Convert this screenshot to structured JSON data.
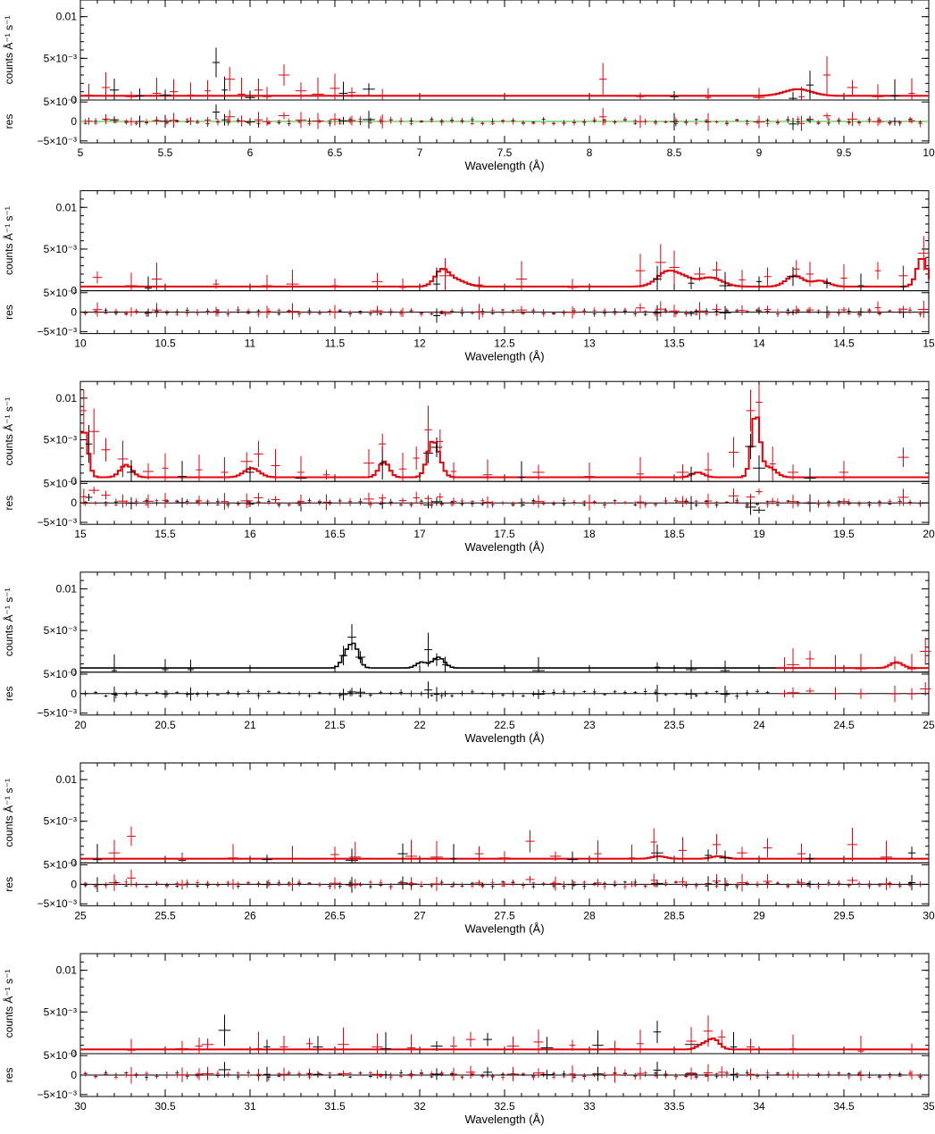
{
  "chart_data": {
    "type": "line",
    "colors": {
      "black": "#000000",
      "red": "#e8000b",
      "green": "#20c020"
    },
    "series_colors": [
      "black",
      "red"
    ],
    "top_y_axis": {
      "label": "counts Å⁻¹ s⁻¹",
      "ylim": [
        0,
        0.012
      ],
      "ticks": [
        "0",
        "5×10⁻³",
        "0.01"
      ]
    },
    "res_y_axis": {
      "label": "res",
      "ylim": [
        -0.0055,
        0.0055
      ],
      "ticks": [
        "−5×10⁻³",
        "0",
        "5×10⁻³"
      ]
    },
    "xlabel": "Wavelength (Å)",
    "panels": [
      {
        "xlim": [
          5,
          10
        ],
        "xticks": [
          "5",
          "5.5",
          "6",
          "6.5",
          "7",
          "7.5",
          "8",
          "8.5",
          "9",
          "9.5",
          "10"
        ],
        "residual_zero_color": "green",
        "lines": [
          [
            9.22,
            0.0008,
            0.08
          ]
        ],
        "black_pts": [
          [
            5.2,
            0.0012
          ],
          [
            5.35,
            0.0005
          ],
          [
            5.5,
            0.0006
          ],
          [
            5.8,
            0.0045
          ],
          [
            5.85,
            0.0012
          ],
          [
            6.0,
            0.0003
          ],
          [
            6.55,
            0.0008
          ],
          [
            6.7,
            0.0013
          ],
          [
            8.5,
            0.0004
          ],
          [
            9.2,
            0.0002
          ],
          [
            9.3,
            0.0018
          ],
          [
            9.8,
            0.0005
          ]
        ],
        "red_pts": [
          [
            5.05,
            0.0006
          ],
          [
            5.15,
            0.0015
          ],
          [
            5.3,
            0.0004
          ],
          [
            5.45,
            0.0008
          ],
          [
            5.55,
            0.001
          ],
          [
            5.65,
            0.0006
          ],
          [
            5.75,
            0.0011
          ],
          [
            5.88,
            0.0025
          ],
          [
            5.95,
            0.0007
          ],
          [
            6.05,
            0.0012
          ],
          [
            6.1,
            0.0004
          ],
          [
            6.2,
            0.003
          ],
          [
            6.3,
            0.0011
          ],
          [
            6.4,
            0.0007
          ],
          [
            6.5,
            0.0014
          ],
          [
            6.6,
            0.0009
          ],
          [
            6.78,
            0.0005
          ],
          [
            8.08,
            0.0025
          ],
          [
            8.3,
            0.0004
          ],
          [
            8.7,
            0.0003
          ],
          [
            9.0,
            0.0003
          ],
          [
            9.25,
            0.0004
          ],
          [
            9.4,
            0.003
          ],
          [
            9.55,
            0.0015
          ],
          [
            9.7,
            0.0004
          ],
          [
            9.9,
            0.0008
          ]
        ]
      },
      {
        "xlim": [
          10,
          15
        ],
        "xticks": [
          "10",
          "10.5",
          "11",
          "11.5",
          "12",
          "12.5",
          "13",
          "13.5",
          "14",
          "14.5",
          "15"
        ],
        "residual_zero_color": "black",
        "lines": [
          [
            12.12,
            0.0018,
            0.04
          ],
          [
            12.2,
            0.0008,
            0.06
          ],
          [
            13.45,
            0.0018,
            0.06
          ],
          [
            13.55,
            0.0008,
            0.05
          ],
          [
            13.7,
            0.0011,
            0.07
          ],
          [
            14.2,
            0.0013,
            0.05
          ],
          [
            14.35,
            0.0007,
            0.05
          ],
          [
            14.95,
            0.0035,
            0.03
          ]
        ],
        "black_pts": [
          [
            10.4,
            0.0003
          ],
          [
            12.1,
            0.0008
          ],
          [
            13.4,
            0.0014
          ],
          [
            13.6,
            0.0009
          ],
          [
            13.8,
            0.0006
          ],
          [
            14.0,
            0.0011
          ],
          [
            14.2,
            0.0017
          ],
          [
            14.4,
            0.0009
          ],
          [
            14.6,
            0.0006
          ],
          [
            14.85,
            0.0005
          ]
        ],
        "red_pts": [
          [
            10.1,
            0.0016
          ],
          [
            10.3,
            0.0006
          ],
          [
            10.45,
            0.0014
          ],
          [
            10.8,
            0.0008
          ],
          [
            11.1,
            0.0006
          ],
          [
            11.25,
            0.0008
          ],
          [
            11.5,
            0.0006
          ],
          [
            11.75,
            0.0011
          ],
          [
            11.9,
            0.0004
          ],
          [
            12.15,
            0.0018
          ],
          [
            12.35,
            0.0007
          ],
          [
            12.6,
            0.0014
          ],
          [
            12.9,
            0.0004
          ],
          [
            13.3,
            0.0024
          ],
          [
            13.42,
            0.0034
          ],
          [
            13.5,
            0.0028
          ],
          [
            13.65,
            0.002
          ],
          [
            13.75,
            0.0025
          ],
          [
            13.9,
            0.0013
          ],
          [
            14.05,
            0.0017
          ],
          [
            14.22,
            0.0026
          ],
          [
            14.3,
            0.002
          ],
          [
            14.5,
            0.0015
          ],
          [
            14.7,
            0.0024
          ],
          [
            14.85,
            0.0018
          ],
          [
            14.97,
            0.0045
          ]
        ]
      },
      {
        "xlim": [
          15,
          20
        ],
        "xticks": [
          "15",
          "15.5",
          "16",
          "16.5",
          "17",
          "17.5",
          "18",
          "18.5",
          "19",
          "19.5",
          "20"
        ],
        "residual_zero_color": "black",
        "lines": [
          [
            15.01,
            0.0058,
            0.025
          ],
          [
            15.26,
            0.0015,
            0.035
          ],
          [
            16.0,
            0.0011,
            0.045
          ],
          [
            16.78,
            0.0019,
            0.03
          ],
          [
            17.06,
            0.0036,
            0.03
          ],
          [
            17.1,
            0.0016,
            0.03
          ],
          [
            18.63,
            0.0006,
            0.035
          ],
          [
            18.97,
            0.0075,
            0.025
          ],
          [
            19.05,
            0.0012,
            0.04
          ]
        ],
        "black_pts": [
          [
            15.05,
            0.0045
          ],
          [
            15.3,
            0.0011
          ],
          [
            15.6,
            0.0006
          ],
          [
            16.0,
            0.0011
          ],
          [
            16.3,
            0.0004
          ],
          [
            16.78,
            0.0022
          ],
          [
            17.05,
            0.0034
          ],
          [
            17.1,
            0.0041
          ],
          [
            17.6,
            0.0005
          ],
          [
            18.6,
            0.0009
          ],
          [
            18.95,
            0.0042
          ],
          [
            19.0,
            0.0016
          ],
          [
            19.3,
            0.0004
          ]
        ],
        "red_pts": [
          [
            15.02,
            0.0085
          ],
          [
            15.08,
            0.006
          ],
          [
            15.15,
            0.0038
          ],
          [
            15.25,
            0.0027
          ],
          [
            15.4,
            0.0012
          ],
          [
            15.5,
            0.0016
          ],
          [
            15.7,
            0.0014
          ],
          [
            15.85,
            0.0011
          ],
          [
            15.98,
            0.0024
          ],
          [
            16.05,
            0.0033
          ],
          [
            16.15,
            0.0019
          ],
          [
            16.3,
            0.0011
          ],
          [
            16.45,
            0.0008
          ],
          [
            16.7,
            0.0022
          ],
          [
            16.78,
            0.0045
          ],
          [
            16.9,
            0.0015
          ],
          [
            16.98,
            0.0028
          ],
          [
            17.05,
            0.0062
          ],
          [
            17.12,
            0.0048
          ],
          [
            17.2,
            0.0012
          ],
          [
            17.4,
            0.0008
          ],
          [
            17.7,
            0.0011
          ],
          [
            18.0,
            0.0006
          ],
          [
            18.3,
            0.0009
          ],
          [
            18.55,
            0.0011
          ],
          [
            18.7,
            0.0014
          ],
          [
            18.85,
            0.0035
          ],
          [
            18.95,
            0.0085
          ],
          [
            19.0,
            0.0095
          ],
          [
            19.08,
            0.0021
          ],
          [
            19.2,
            0.0011
          ],
          [
            19.5,
            0.0011
          ],
          [
            19.85,
            0.0029
          ]
        ]
      },
      {
        "xlim": [
          20,
          25
        ],
        "xticks": [
          "20",
          "20.5",
          "21",
          "21.5",
          "22",
          "22.5",
          "23",
          "23.5",
          "24",
          "24.5",
          "25"
        ],
        "residual_zero_color": "black",
        "lines": [
          [
            21.6,
            0.0028,
            0.03
          ],
          [
            21.55,
            0.0012,
            0.025
          ],
          [
            22.1,
            0.0013,
            0.035
          ],
          [
            22.0,
            0.0007,
            0.03
          ]
        ],
        "red_from": 24.1,
        "red_lines": [
          [
            24.8,
            0.0007,
            0.035
          ]
        ],
        "black_pts": [
          [
            20.2,
            0.0002
          ],
          [
            20.5,
            0.0003
          ],
          [
            20.65,
            0.0003
          ],
          [
            21.55,
            0.002
          ],
          [
            21.6,
            0.0042
          ],
          [
            21.65,
            0.0018
          ],
          [
            22.05,
            0.0027
          ],
          [
            22.1,
            0.0015
          ],
          [
            22.15,
            0.0009
          ],
          [
            22.7,
            0.0002
          ],
          [
            23.4,
            0.0006
          ],
          [
            23.6,
            0.0003
          ],
          [
            23.8,
            0.0002
          ]
        ],
        "red_pts": [
          [
            24.15,
            0.0005
          ],
          [
            24.2,
            0.0009
          ],
          [
            24.3,
            0.0016
          ],
          [
            24.45,
            0.0005
          ],
          [
            24.6,
            0.0004
          ],
          [
            24.8,
            0.0011
          ],
          [
            24.9,
            0.0004
          ],
          [
            24.98,
            0.0025
          ]
        ]
      },
      {
        "xlim": [
          25,
          30
        ],
        "xticks": [
          "25",
          "25.5",
          "26",
          "26.5",
          "27",
          "27.5",
          "28",
          "28.5",
          "29",
          "29.5",
          "30"
        ],
        "residual_zero_color": "black",
        "lines": [
          [
            28.4,
            0.0003,
            0.04
          ],
          [
            28.75,
            0.0003,
            0.04
          ]
        ],
        "black_pts": [
          [
            25.1,
            0.0004
          ],
          [
            25.6,
            0.0003
          ],
          [
            26.1,
            0.0004
          ],
          [
            26.6,
            0.0003
          ],
          [
            26.9,
            0.0011
          ],
          [
            27.2,
            0.0005
          ],
          [
            27.9,
            0.0004
          ],
          [
            28.4,
            0.0012
          ],
          [
            28.7,
            0.0009
          ],
          [
            28.8,
            0.0006
          ],
          [
            29.3,
            0.0005
          ],
          [
            29.9,
            0.0012
          ]
        ],
        "red_pts": [
          [
            25.2,
            0.0012
          ],
          [
            25.3,
            0.0032
          ],
          [
            25.6,
            0.0005
          ],
          [
            25.9,
            0.0006
          ],
          [
            26.25,
            0.0005
          ],
          [
            26.5,
            0.001
          ],
          [
            26.62,
            0.0007
          ],
          [
            26.95,
            0.0008
          ],
          [
            27.1,
            0.0007
          ],
          [
            27.35,
            0.0011
          ],
          [
            27.5,
            0.0006
          ],
          [
            27.65,
            0.0026
          ],
          [
            27.8,
            0.0008
          ],
          [
            28.05,
            0.0011
          ],
          [
            28.25,
            0.0006
          ],
          [
            28.38,
            0.0025
          ],
          [
            28.55,
            0.0015
          ],
          [
            28.75,
            0.0022
          ],
          [
            28.9,
            0.0012
          ],
          [
            29.05,
            0.0018
          ],
          [
            29.25,
            0.0011
          ],
          [
            29.55,
            0.0022
          ],
          [
            29.75,
            0.0007
          ]
        ]
      },
      {
        "xlim": [
          30,
          35
        ],
        "xticks": [
          "30",
          "30.5",
          "31",
          "31.5",
          "32",
          "32.5",
          "33",
          "33.5",
          "34",
          "34.5",
          "35"
        ],
        "residual_zero_color": "black",
        "lines": [
          [
            33.72,
            0.0013,
            0.035
          ],
          [
            33.65,
            0.0005,
            0.03
          ]
        ],
        "black_pts": [
          [
            30.85,
            0.0028
          ],
          [
            31.1,
            0.0008
          ],
          [
            31.4,
            0.0008
          ],
          [
            31.8,
            0.0006
          ],
          [
            32.1,
            0.0009
          ],
          [
            32.4,
            0.0017
          ],
          [
            32.75,
            0.0007
          ],
          [
            33.05,
            0.001
          ],
          [
            33.4,
            0.0026
          ],
          [
            33.6,
            0.0011
          ],
          [
            33.85,
            0.0008
          ]
        ],
        "red_pts": [
          [
            30.3,
            0.0004
          ],
          [
            30.6,
            0.0006
          ],
          [
            30.7,
            0.0009
          ],
          [
            30.75,
            0.0011
          ],
          [
            31.05,
            0.0006
          ],
          [
            31.2,
            0.0008
          ],
          [
            31.35,
            0.0012
          ],
          [
            31.55,
            0.0011
          ],
          [
            31.75,
            0.0008
          ],
          [
            31.95,
            0.0007
          ],
          [
            32.2,
            0.0009
          ],
          [
            32.3,
            0.0017
          ],
          [
            32.55,
            0.0009
          ],
          [
            32.7,
            0.0014
          ],
          [
            32.9,
            0.001
          ],
          [
            33.15,
            0.0006
          ],
          [
            33.3,
            0.0012
          ],
          [
            33.6,
            0.0015
          ],
          [
            33.7,
            0.0027
          ],
          [
            33.78,
            0.002
          ],
          [
            33.95,
            0.0008
          ],
          [
            34.2,
            0.0006
          ],
          [
            34.6,
            0.0003
          ],
          [
            34.9,
            0.0005
          ]
        ]
      }
    ]
  }
}
